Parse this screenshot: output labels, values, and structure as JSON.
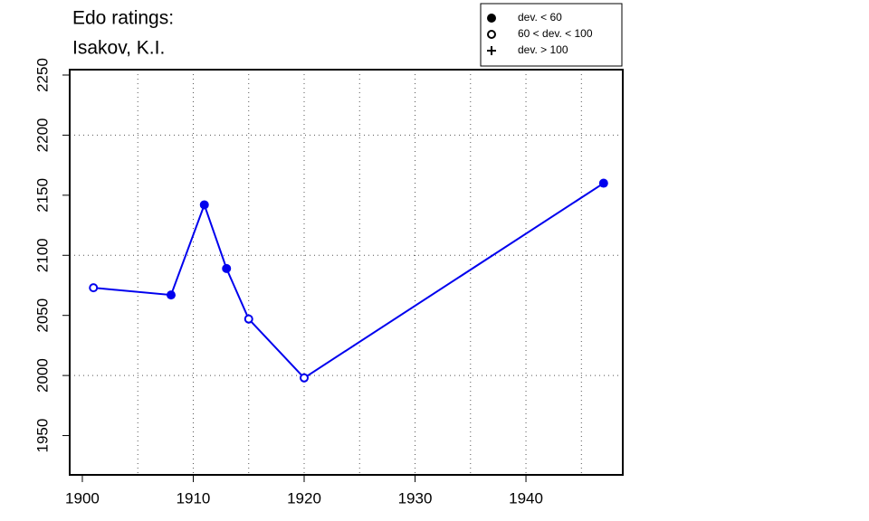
{
  "chart_data": {
    "type": "line",
    "title": "Edo ratings:",
    "subtitle": "Isakov, K.I.",
    "x": [
      1901,
      1908,
      1911,
      1913,
      1915,
      1920,
      1947
    ],
    "series": [
      {
        "color": "#0000ee",
        "values": [
          2073,
          2067,
          2142,
          2089,
          2047,
          1998,
          2160
        ],
        "markers": [
          "open",
          "filled",
          "filled",
          "filled",
          "open",
          "open",
          "filled"
        ]
      }
    ],
    "xlim": [
      1898.86,
      1948.73
    ],
    "ylim": [
      1917.3,
      2254.5
    ],
    "xticks": [
      1900,
      1910,
      1920,
      1930,
      1940
    ],
    "yticks": [
      1950,
      2000,
      2050,
      2100,
      2150,
      2200,
      2250
    ],
    "xgrid": [
      1905,
      1910,
      1915,
      1920,
      1925,
      1930,
      1935,
      1940,
      1945
    ],
    "ygrid": [
      2000,
      2100,
      2200
    ],
    "legend": [
      {
        "label": "dev. < 60",
        "symbol": "filled"
      },
      {
        "label": "60 < dev. < 100",
        "symbol": "open"
      },
      {
        "label": "dev. > 100",
        "symbol": "plus"
      }
    ],
    "legend_position": "top-right"
  }
}
